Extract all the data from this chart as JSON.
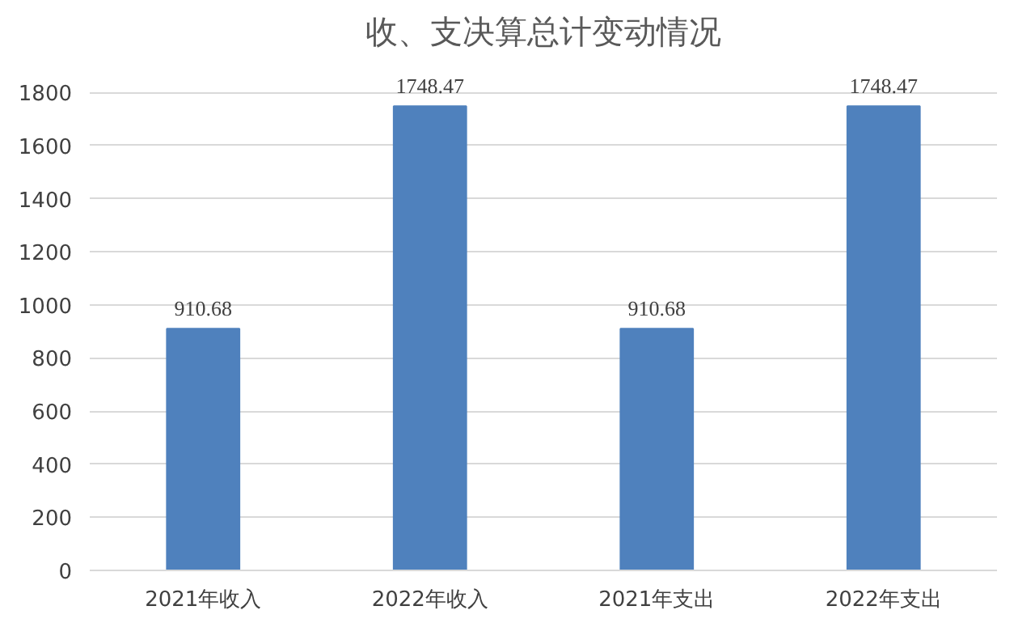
{
  "chart_data": {
    "type": "bar",
    "title": "收、支决算总计变动情况",
    "categories": [
      "2021年收入",
      "2022年收入",
      "2021年支出",
      "2022年支出"
    ],
    "values": [
      910.68,
      1748.47,
      910.68,
      1748.47
    ],
    "color": "#4f81bd",
    "ylim": [
      0,
      1800
    ],
    "yticks": [
      0,
      200,
      400,
      600,
      800,
      1000,
      1200,
      1400,
      1600,
      1800
    ],
    "grid": "y",
    "data_labels": true
  }
}
